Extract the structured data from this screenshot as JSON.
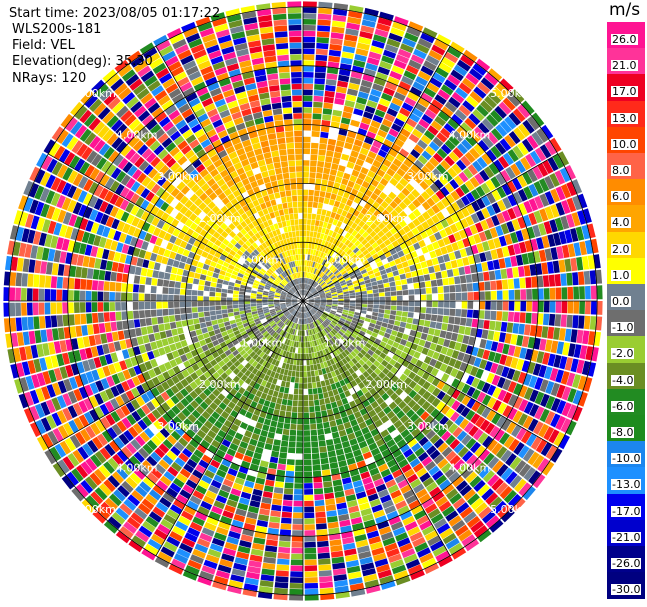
{
  "header": {
    "start_time": "Start time: 2023/08/05 01:17:22",
    "instrument": "WLS200s-181",
    "field": "Field: VEL",
    "elevation": "Elevation(deg): 35.30",
    "nrays": "NRays: 120"
  },
  "chart_data": {
    "type": "heatmap",
    "subtype": "polar-ppi",
    "field": "VEL",
    "units": "m/s",
    "elevation_deg": 35.3,
    "n_rays": 120,
    "range_rings_km": [
      1.0,
      2.0,
      3.0,
      4.0,
      5.0
    ],
    "ring_labels": [
      "1.00km",
      "2.00km",
      "3.00km",
      "4.00km",
      "5.00km"
    ],
    "max_range_km": 5.1,
    "colorbar": {
      "unit_label": "m/s",
      "ticks": [
        "26.0",
        "21.0",
        "17.0",
        "13.0",
        "10.0",
        "8.0",
        "6.0",
        "4.0",
        "2.0",
        "1.0",
        "0.0",
        "-1.0",
        "-2.0",
        "-4.0",
        "-6.0",
        "-8.0",
        "-10.0",
        "-13.0",
        "-17.0",
        "-21.0",
        "-26.0",
        "-30.0"
      ],
      "colors": [
        "#ff1493",
        "#ff3399",
        "#ee0022",
        "#ff2a1a",
        "#ff4500",
        "#ff6347",
        "#ff8c00",
        "#ffa500",
        "#ffd700",
        "#ffff00",
        "#708090",
        "#6e6e6e",
        "#9acd32",
        "#6b8e23",
        "#228b22",
        "#1e8b1e",
        "#1c86ee",
        "#1e90ff",
        "#0000ee",
        "#0000cd",
        "#00008b",
        "#000080"
      ]
    }
  }
}
